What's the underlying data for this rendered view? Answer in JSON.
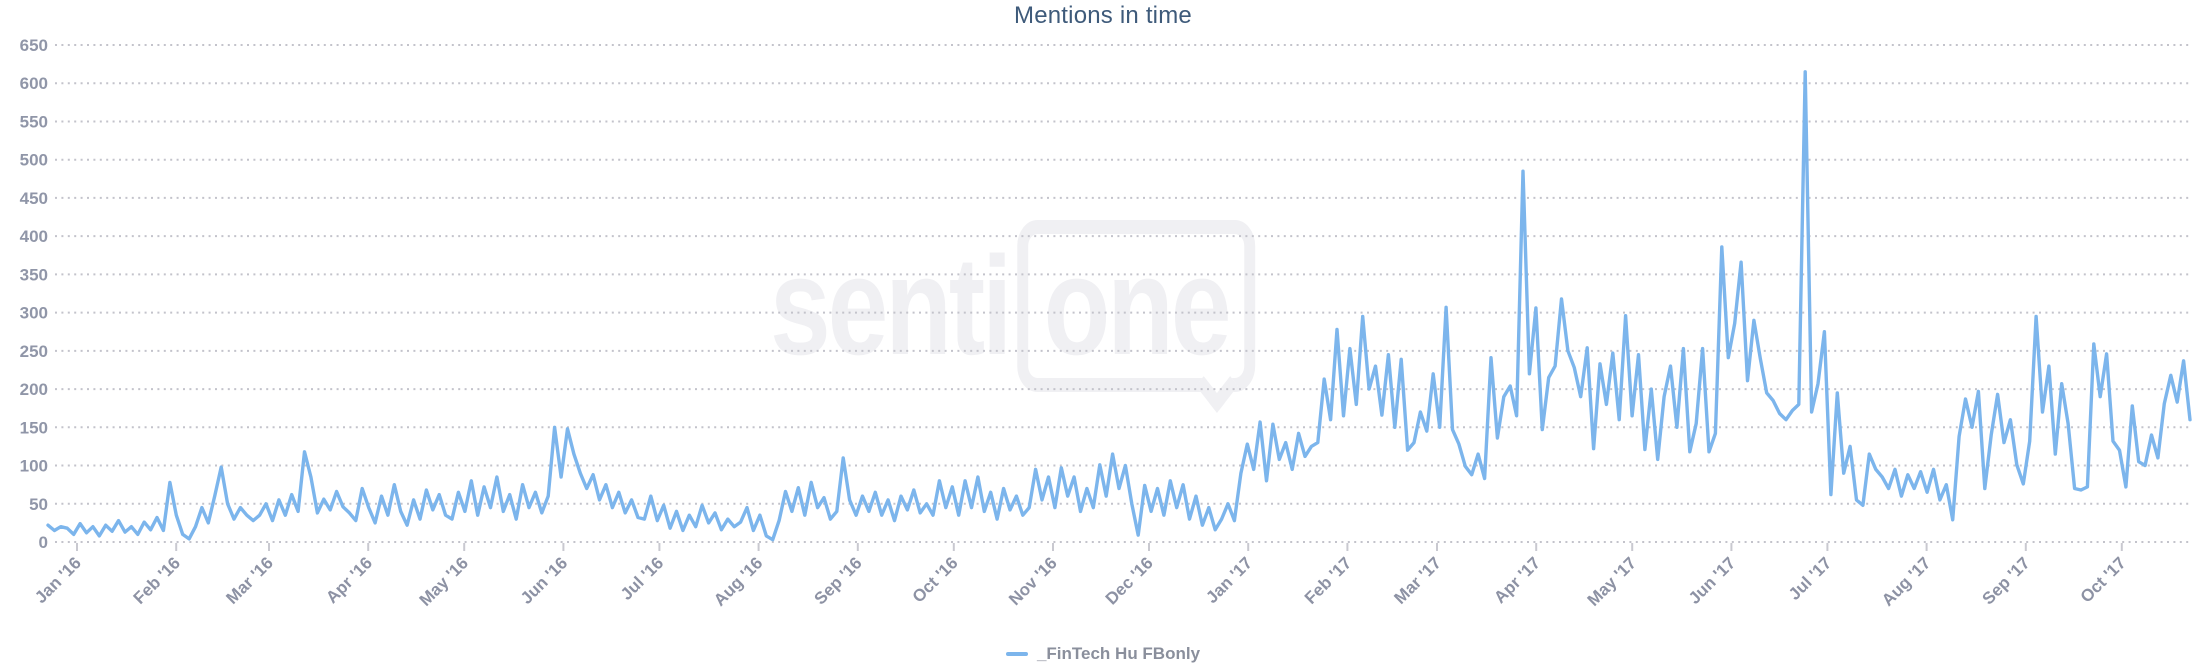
{
  "title": "Mentions in time",
  "watermark": {
    "part1": "senti",
    "part2": "one",
    "color": "#f0f0f3"
  },
  "legend": {
    "label": "_FinTech Hu FBonly",
    "dash_color": "#7cb5ec"
  },
  "colors": {
    "line": "#7cb5ec",
    "title": "#3e5a7a",
    "y_label": "#9096a8",
    "x_label": "#8d92a4",
    "grid": "#c3c3cb",
    "tick": "#c9c9d0",
    "background": "#ffffff"
  },
  "chart_data": {
    "type": "line",
    "title": "Mentions in time",
    "x_tick_labels": [
      "Jan '16",
      "Feb '16",
      "Mar '16",
      "Apr '16",
      "May '16",
      "Jun '16",
      "Jul '16",
      "Aug '16",
      "Sep '16",
      "Oct '16",
      "Nov '16",
      "Dec '16",
      "Jan '17",
      "Feb '17",
      "Mar '17",
      "Apr '17",
      "May '17",
      "Jun '17",
      "Jul '17",
      "Aug '17",
      "Sep '17",
      "Oct '17"
    ],
    "y_ticks": [
      0,
      50,
      100,
      150,
      200,
      250,
      300,
      350,
      400,
      450,
      500,
      550,
      600,
      650
    ],
    "ylim": [
      0,
      650
    ],
    "grid": "dotted-horizontal",
    "legend_position": "bottom-center",
    "series": [
      {
        "name": "_FinTech Hu FBonly",
        "color": "#7cb5ec",
        "values": [
          22,
          15,
          20,
          18,
          10,
          24,
          12,
          20,
          8,
          22,
          14,
          28,
          13,
          20,
          10,
          26,
          16,
          32,
          15,
          78,
          35,
          10,
          4,
          20,
          45,
          25,
          60,
          98,
          50,
          30,
          45,
          35,
          28,
          35,
          50,
          28,
          55,
          35,
          62,
          40,
          118,
          85,
          38,
          56,
          42,
          66,
          46,
          38,
          28,
          70,
          45,
          25,
          60,
          35,
          75,
          40,
          22,
          55,
          30,
          68,
          42,
          62,
          35,
          30,
          65,
          40,
          80,
          35,
          72,
          45,
          85,
          40,
          62,
          30,
          75,
          45,
          65,
          38,
          60,
          150,
          85,
          148,
          115,
          90,
          70,
          88,
          55,
          75,
          45,
          65,
          38,
          55,
          32,
          30,
          60,
          28,
          48,
          18,
          40,
          15,
          35,
          20,
          48,
          25,
          38,
          16,
          30,
          20,
          26,
          45,
          15,
          35,
          8,
          3,
          28,
          66,
          40,
          71,
          35,
          78,
          45,
          58,
          30,
          40,
          110,
          55,
          35,
          60,
          40,
          65,
          35,
          55,
          28,
          60,
          42,
          68,
          38,
          50,
          35,
          80,
          45,
          72,
          35,
          80,
          45,
          85,
          40,
          65,
          30,
          70,
          42,
          60,
          35,
          45,
          95,
          55,
          85,
          45,
          97,
          60,
          85,
          40,
          70,
          45,
          101,
          60,
          115,
          70,
          100,
          50,
          9,
          74,
          40,
          70,
          35,
          80,
          45,
          75,
          30,
          60,
          22,
          45,
          16,
          30,
          50,
          28,
          90,
          128,
          95,
          157,
          80,
          154,
          108,
          130,
          95,
          142,
          112,
          125,
          130,
          213,
          160,
          278,
          165,
          253,
          180,
          295,
          200,
          230,
          166,
          245,
          150,
          239,
          120,
          130,
          170,
          145,
          220,
          150,
          307,
          147,
          128,
          99,
          88,
          115,
          83,
          241,
          136,
          190,
          204,
          165,
          485,
          220,
          306,
          147,
          215,
          230,
          318,
          250,
          228,
          190,
          254,
          122,
          233,
          180,
          247,
          160,
          296,
          165,
          245,
          121,
          200,
          108,
          190,
          230,
          150,
          253,
          118,
          155,
          253,
          118,
          142,
          386,
          241,
          286,
          366,
          211,
          290,
          240,
          195,
          185,
          168,
          160,
          172,
          180,
          615,
          170,
          207,
          275,
          62,
          195,
          90,
          125,
          55,
          48,
          115,
          95,
          85,
          70,
          95,
          60,
          88,
          70,
          92,
          65,
          95,
          55,
          75,
          29,
          138,
          187,
          150,
          197,
          70,
          140,
          193,
          130,
          160,
          101,
          76,
          132,
          295,
          170,
          230,
          115,
          207,
          155,
          70,
          68,
          72,
          259,
          190,
          246,
          132,
          120,
          72,
          178,
          105,
          100,
          140,
          110,
          181,
          218,
          183,
          237,
          160
        ]
      }
    ]
  }
}
